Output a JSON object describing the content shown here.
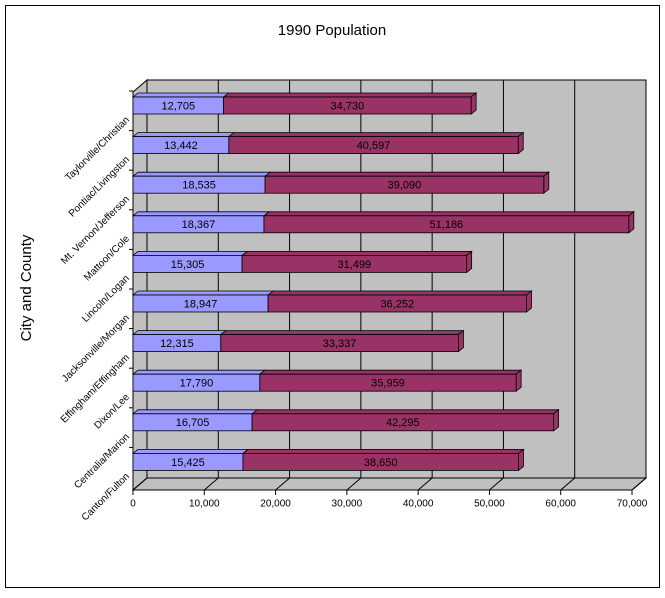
{
  "chart_data": {
    "type": "stacked-bar-3d",
    "orientation": "horizontal",
    "title": "1990 Population",
    "y_axis_label": "City and County",
    "categories": [
      "Taylorville/Christian",
      "Pontiac/Livingston",
      "Mt. Vernon/Jefferson",
      "Mattoon/Cole",
      "Lincoln/Logan",
      "Jacksonville/Morgan",
      "Effingham/Effingham",
      "Dixon/Lee",
      "Centralia/Marion",
      "Canton/Fulton"
    ],
    "series": [
      {
        "color": "#9999ff",
        "values": [
          12705,
          13442,
          18535,
          18367,
          15305,
          18947,
          12315,
          17790,
          16705,
          15425
        ],
        "value_labels": [
          "12,705",
          "13,442",
          "18,535",
          "18,367",
          "15,305",
          "18,947",
          "12,315",
          "17,790",
          "16,705",
          "15,425"
        ]
      },
      {
        "color": "#993366",
        "values": [
          34730,
          40597,
          39090,
          51186,
          31499,
          36252,
          33337,
          35959,
          42295,
          38650
        ],
        "value_labels": [
          "34,730",
          "40,597",
          "39,090",
          "51,186",
          "31,499",
          "36,252",
          "33,337",
          "35,959",
          "42,295",
          "38,650"
        ]
      }
    ],
    "xlim": [
      0,
      70000
    ],
    "xticks": [
      0,
      {
        "value": 10000,
        "label": "10,000"
      },
      {
        "value": 20000,
        "label": "20,000"
      },
      {
        "value": 30000,
        "label": "30,000"
      },
      {
        "value": 40000,
        "label": "40,000"
      },
      {
        "value": 50000,
        "label": "50,000"
      },
      {
        "value": 60000,
        "label": "60,000"
      },
      {
        "value": 70000,
        "label": "70,000"
      }
    ],
    "grid": true,
    "wall_color": "#c0c0c0"
  }
}
